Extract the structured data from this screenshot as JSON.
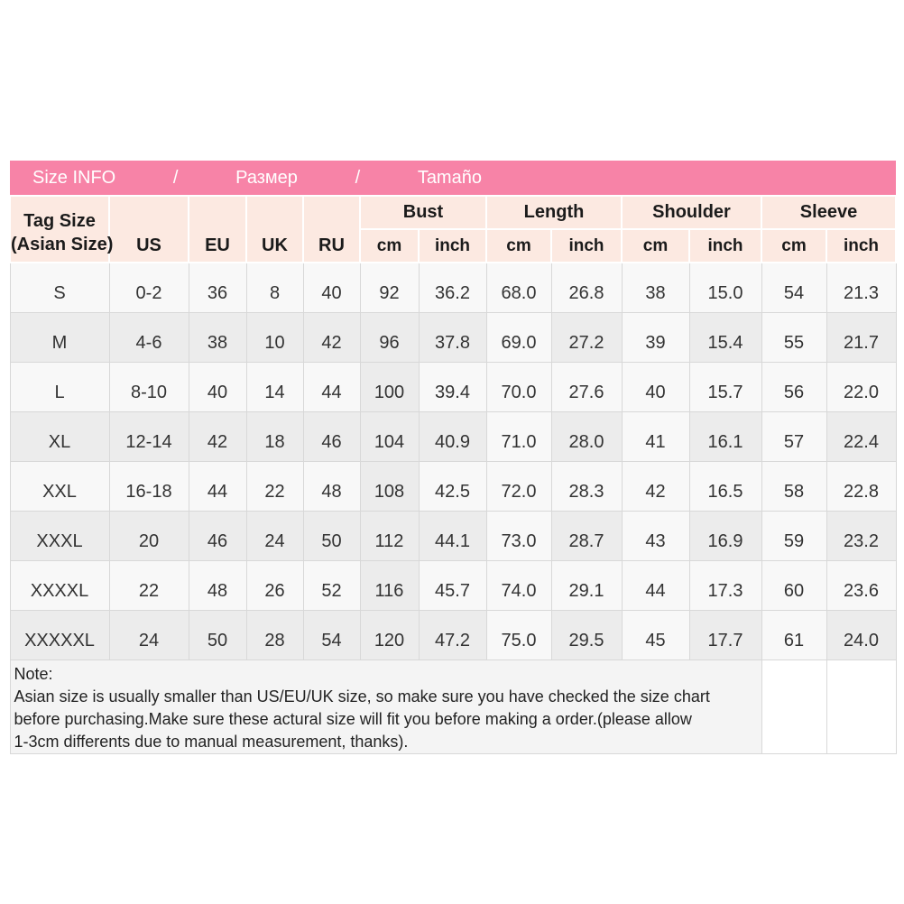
{
  "colors": {
    "header_pink": "#f783a7",
    "pink_divider": "#e8709c",
    "header_pale": "#fce9e1",
    "row_shaded": "#ececec",
    "row_plain": "#f8f8f8",
    "title_text": "#ffffff"
  },
  "title_bar": {
    "segments": [
      "Size INFO",
      "/",
      "Размер",
      "/",
      "Tamaño"
    ]
  },
  "header": {
    "tag_line1": "Tag Size",
    "tag_line2": "(Asian Size)",
    "size_systems": [
      "US",
      "EU",
      "UK",
      "RU"
    ],
    "measure_groups": [
      {
        "label": "Bust",
        "units": [
          "cm",
          "inch"
        ]
      },
      {
        "label": "Length",
        "units": [
          "cm",
          "inch"
        ]
      },
      {
        "label": "Shoulder",
        "units": [
          "cm",
          "inch"
        ]
      },
      {
        "label": "Sleeve",
        "units": [
          "cm",
          "inch"
        ]
      }
    ]
  },
  "columns_order": [
    "tag-size",
    "us",
    "eu",
    "uk",
    "ru",
    "bust-cm",
    "bust-inch",
    "length-cm",
    "length-inch",
    "shoulder-cm",
    "shoulder-inch",
    "sleeve-cm",
    "sleeve-inch"
  ],
  "rows": [
    {
      "cells": [
        "S",
        "0-2",
        "36",
        "8",
        "40",
        "92",
        "36.2",
        "68.0",
        "26.8",
        "38",
        "15.0",
        "54",
        "21.3"
      ]
    },
    {
      "cells": [
        "M",
        "4-6",
        "38",
        "10",
        "42",
        "96",
        "37.8",
        "69.0",
        "27.2",
        "39",
        "15.4",
        "55",
        "21.7"
      ]
    },
    {
      "cells": [
        "L",
        "8-10",
        "40",
        "14",
        "44",
        "100",
        "39.4",
        "70.0",
        "27.6",
        "40",
        "15.7",
        "56",
        "22.0"
      ]
    },
    {
      "cells": [
        "XL",
        "12-14",
        "42",
        "18",
        "46",
        "104",
        "40.9",
        "71.0",
        "28.0",
        "41",
        "16.1",
        "57",
        "22.4"
      ]
    },
    {
      "cells": [
        "XXL",
        "16-18",
        "44",
        "22",
        "48",
        "108",
        "42.5",
        "72.0",
        "28.3",
        "42",
        "16.5",
        "58",
        "22.8"
      ]
    },
    {
      "cells": [
        "XXXL",
        "20",
        "46",
        "24",
        "50",
        "112",
        "44.1",
        "73.0",
        "28.7",
        "43",
        "16.9",
        "59",
        "23.2"
      ]
    },
    {
      "cells": [
        "XXXXL",
        "22",
        "48",
        "26",
        "52",
        "116",
        "45.7",
        "74.0",
        "29.1",
        "44",
        "17.3",
        "60",
        "23.6"
      ]
    },
    {
      "cells": [
        "XXXXXL",
        "24",
        "50",
        "28",
        "54",
        "120",
        "47.2",
        "75.0",
        "29.5",
        "45",
        "17.7",
        "61",
        "24.0"
      ]
    }
  ],
  "note": {
    "lines": [
      "Note:",
      "Asian size is usually smaller than US/EU/UK size, so make sure you have checked the size chart",
      "before purchasing.Make sure these actural size will fit you before making a order.(please allow",
      "1-3cm differents due to manual measurement, thanks)."
    ]
  }
}
